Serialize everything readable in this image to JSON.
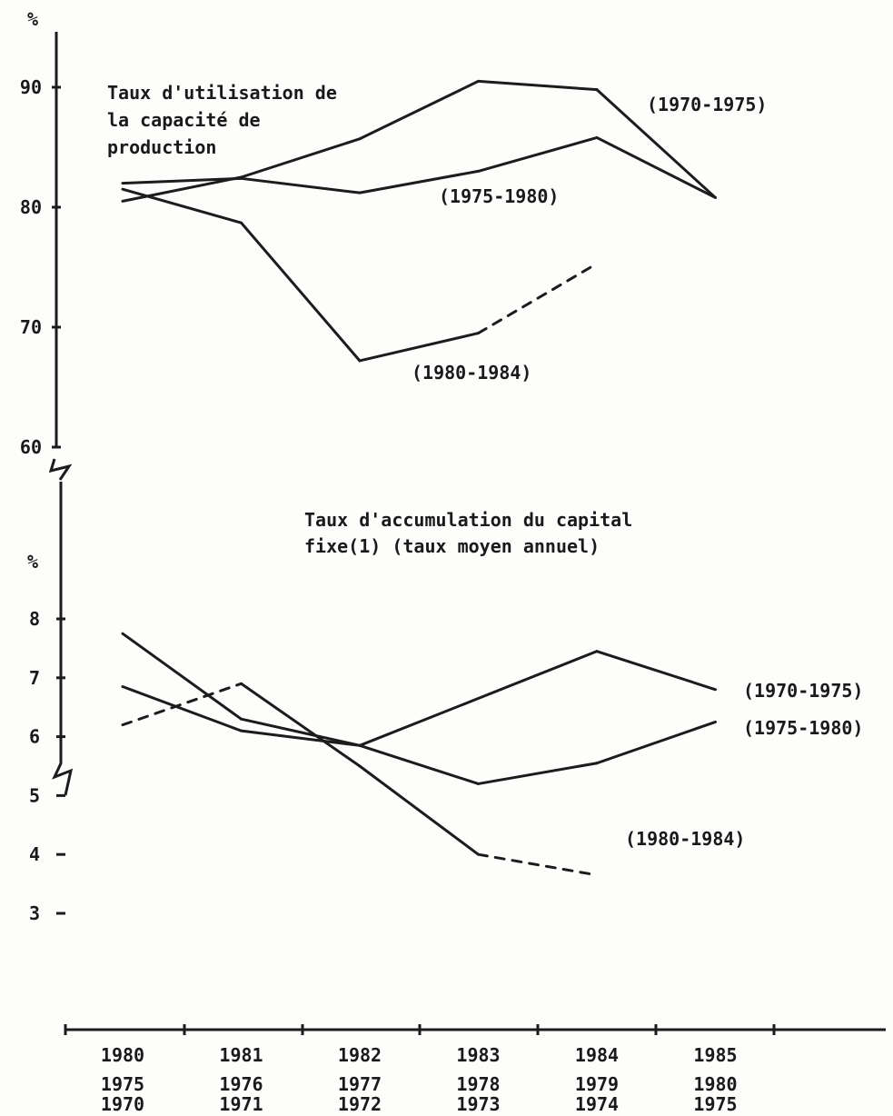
{
  "chart_data": [
    {
      "type": "line",
      "title": "Taux d'utilisation de la capacité de production",
      "ylabel": "%",
      "ylim": [
        60,
        93
      ],
      "yticks": [
        90,
        80,
        70,
        60
      ],
      "x_positions": [
        0,
        1,
        2,
        3,
        4,
        5
      ],
      "series": [
        {
          "name": "(1970-1975)",
          "values": [
            80.5,
            82.5,
            85.7,
            90.5,
            89.8,
            80.8
          ],
          "dashed_from": null
        },
        {
          "name": "(1975-1980)",
          "values": [
            82.0,
            82.4,
            81.2,
            83.0,
            85.8,
            80.8
          ],
          "dashed_from": null
        },
        {
          "name": "(1980-1984)",
          "values": [
            81.5,
            78.7,
            67.2,
            69.5,
            75.3,
            null
          ],
          "dashed_from": 3
        }
      ]
    },
    {
      "type": "line",
      "title": "Taux d'accumulation du capital fixe(1) (taux moyen annuel)",
      "ylabel": "%",
      "ylim": [
        2,
        8.5
      ],
      "yticks": [
        8,
        7,
        6,
        5,
        4,
        3
      ],
      "x_positions": [
        0,
        1,
        2,
        3,
        4,
        5
      ],
      "series": [
        {
          "name": "(1970-1975)",
          "values": [
            7.75,
            6.3,
            5.85,
            6.65,
            7.45,
            6.8
          ]
        },
        {
          "name": "(1975-1980)",
          "values": [
            6.85,
            6.1,
            5.85,
            5.2,
            5.55,
            6.25
          ]
        },
        {
          "name": "(1980-1984)",
          "values": [
            6.2,
            6.9,
            5.5,
            4.0,
            3.65,
            null
          ],
          "dashed_segments": [
            [
              0,
              1
            ],
            [
              3,
              4
            ]
          ]
        }
      ]
    }
  ],
  "x_axis": {
    "rows": [
      [
        "1980",
        "1981",
        "1982",
        "1983",
        "1984",
        "1985"
      ],
      [
        "1975",
        "1976",
        "1977",
        "1978",
        "1979",
        "1980"
      ],
      [
        "1970",
        "1971",
        "1972",
        "1973",
        "1974",
        "1975"
      ]
    ]
  },
  "labels": {
    "top_unit": "%",
    "top_title_line1": "Taux d'utilisation de",
    "top_title_line2": "la capacité de",
    "top_title_line3": "production",
    "top_s1": "(1970-1975)",
    "top_s2": "(1975-1980)",
    "top_s3": "(1980-1984)",
    "bottom_unit": "%",
    "bottom_title_line1": "Taux d'accumulation du capital",
    "bottom_title_line2": "fixe(1) (taux moyen annuel)",
    "bottom_s1": "(1970-1975)",
    "bottom_s2": "(1975-1980)",
    "bottom_s3": "(1980-1984)"
  }
}
